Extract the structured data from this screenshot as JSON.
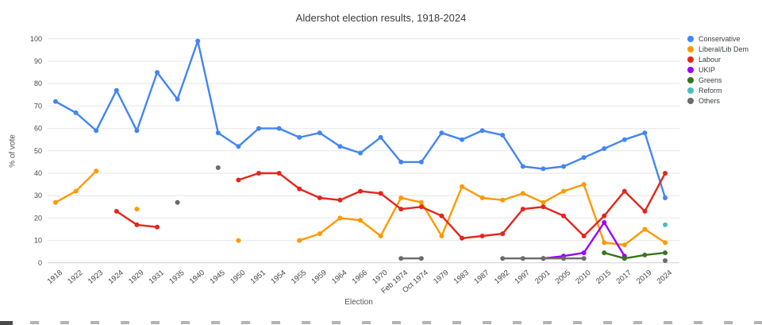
{
  "title": "Aldershot election results, 1918-2024",
  "x_axis_title": "Election",
  "y_axis_title": "% of vote",
  "chart_data": {
    "type": "line",
    "title": "Aldershot election results, 1918-2024",
    "xlabel": "Election",
    "ylabel": "% of vote",
    "ylim": [
      0,
      100
    ],
    "y_ticks": [
      0,
      10,
      20,
      30,
      40,
      50,
      60,
      70,
      80,
      90,
      100
    ],
    "grid": true,
    "legend_position": "right",
    "x": [
      "1918",
      "1922",
      "1923",
      "1924",
      "1929",
      "1931",
      "1935",
      "1940",
      "1945",
      "1950",
      "1951",
      "1954",
      "1955",
      "1959",
      "1964",
      "1966",
      "1970",
      "Feb 1974",
      "Oct 1974",
      "1979",
      "1983",
      "1987",
      "1992",
      "1997",
      "2001",
      "2005",
      "2010",
      "2015",
      "2017",
      "2019",
      "2024"
    ],
    "series": [
      {
        "name": "Conservative",
        "color": "#4285F4",
        "values": [
          72,
          67,
          59,
          77,
          59,
          85,
          73,
          99,
          58,
          52,
          60,
          60,
          56,
          58,
          52,
          49,
          56,
          45,
          45,
          58,
          55,
          59,
          57,
          43,
          42,
          43,
          47,
          51,
          55,
          58,
          29
        ]
      },
      {
        "name": "Liberal/Lib Dem",
        "color": "#FF9900",
        "values": [
          27,
          32,
          41,
          null,
          24,
          null,
          null,
          null,
          null,
          10,
          null,
          null,
          10,
          13,
          20,
          19,
          12,
          29,
          27,
          12,
          34,
          29,
          28,
          31,
          27,
          32,
          35,
          9,
          8,
          15,
          9
        ]
      },
      {
        "name": "Labour",
        "color": "#E3261D",
        "values": [
          null,
          null,
          null,
          23,
          17,
          16,
          null,
          null,
          null,
          37,
          40,
          40,
          33,
          29,
          28,
          32,
          31,
          24,
          25,
          21,
          11,
          12,
          13,
          24,
          25,
          21,
          12,
          21,
          32,
          23,
          40
        ]
      },
      {
        "name": "UKIP",
        "color": "#9900FF",
        "values": [
          null,
          null,
          null,
          null,
          null,
          null,
          null,
          null,
          null,
          null,
          null,
          null,
          null,
          null,
          null,
          null,
          null,
          null,
          null,
          null,
          null,
          null,
          null,
          null,
          2,
          3,
          4.5,
          18,
          3,
          null,
          null
        ]
      },
      {
        "name": "Greens",
        "color": "#38761D",
        "values": [
          null,
          null,
          null,
          null,
          null,
          null,
          null,
          null,
          null,
          null,
          null,
          null,
          null,
          null,
          null,
          null,
          null,
          null,
          null,
          null,
          null,
          null,
          null,
          null,
          null,
          null,
          null,
          4.5,
          2,
          3.5,
          4.5
        ]
      },
      {
        "name": "Reform",
        "color": "#46BDC6",
        "values": [
          null,
          null,
          null,
          null,
          null,
          null,
          null,
          null,
          null,
          null,
          null,
          null,
          null,
          null,
          null,
          null,
          null,
          null,
          null,
          null,
          null,
          null,
          null,
          null,
          null,
          null,
          null,
          null,
          null,
          null,
          17
        ]
      },
      {
        "name": "Others",
        "color": "#6B6B6B",
        "values": [
          null,
          null,
          null,
          null,
          null,
          null,
          27,
          null,
          42.5,
          null,
          null,
          null,
          null,
          null,
          null,
          null,
          null,
          2,
          2,
          null,
          null,
          null,
          2,
          2,
          2,
          2,
          2,
          null,
          null,
          null,
          1
        ]
      }
    ],
    "colors": {
      "grid": "#E6E6E6",
      "axis_line": "#CFCFCF",
      "tick": "#474747",
      "title": "#3B3B3B",
      "axis_title": "#555555"
    }
  }
}
